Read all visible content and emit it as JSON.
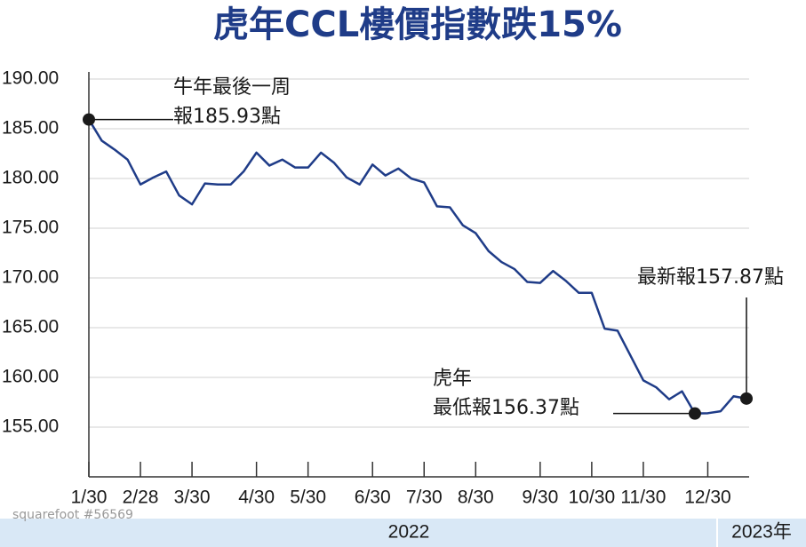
{
  "chart_data": {
    "type": "line",
    "title": "虎年CCL樓價指數跌15%",
    "categories": [
      "1/30",
      null,
      null,
      null,
      "2/28",
      null,
      null,
      null,
      "3/30",
      null,
      null,
      null,
      null,
      "4/30",
      null,
      null,
      null,
      "5/30",
      null,
      null,
      null,
      null,
      "6/30",
      null,
      null,
      null,
      "7/30",
      null,
      null,
      null,
      "8/30",
      null,
      null,
      null,
      null,
      "9/30",
      null,
      null,
      null,
      "10/30",
      null,
      null,
      null,
      "11/30",
      null,
      null,
      null,
      null,
      "12/30",
      null,
      null,
      null
    ],
    "series": [
      {
        "name": "CCL",
        "color": "#1f3c88",
        "values": [
          185.93,
          183.8,
          182.9,
          181.9,
          179.4,
          180.1,
          180.7,
          178.3,
          177.4,
          179.5,
          179.4,
          179.4,
          180.7,
          182.6,
          181.3,
          181.9,
          181.1,
          181.1,
          182.6,
          181.6,
          180.1,
          179.4,
          181.4,
          180.3,
          181.0,
          180.0,
          179.6,
          177.2,
          177.1,
          175.3,
          174.5,
          172.7,
          171.6,
          170.9,
          169.6,
          169.5,
          170.7,
          169.7,
          168.5,
          168.5,
          164.9,
          164.7,
          162.2,
          159.7,
          159.0,
          157.8,
          158.6,
          156.37,
          156.4,
          156.6,
          158.1,
          157.87
        ]
      }
    ],
    "ylim": [
      150,
      190
    ],
    "yticks": [
      {
        "value": 155,
        "label": "155.00"
      },
      {
        "value": 160,
        "label": "160.00"
      },
      {
        "value": 165,
        "label": "165.00"
      },
      {
        "value": 170,
        "label": "170.00"
      },
      {
        "value": 175,
        "label": "175.00"
      },
      {
        "value": 180,
        "label": "180.00"
      },
      {
        "value": 185,
        "label": "185.00"
      },
      {
        "value": 190,
        "label": "190.00"
      }
    ],
    "grid": true,
    "annotations": [
      {
        "index": 0,
        "lines": [
          "牛年最後一周",
          "報185.93點"
        ]
      },
      {
        "index": 47,
        "lines": [
          "虎年",
          "最低報156.37點"
        ]
      },
      {
        "index": 51,
        "lines": [
          "最新報157.87點"
        ]
      }
    ],
    "period_labels": [
      "2022",
      "2023年"
    ],
    "watermark": "squarefoot #56569"
  }
}
